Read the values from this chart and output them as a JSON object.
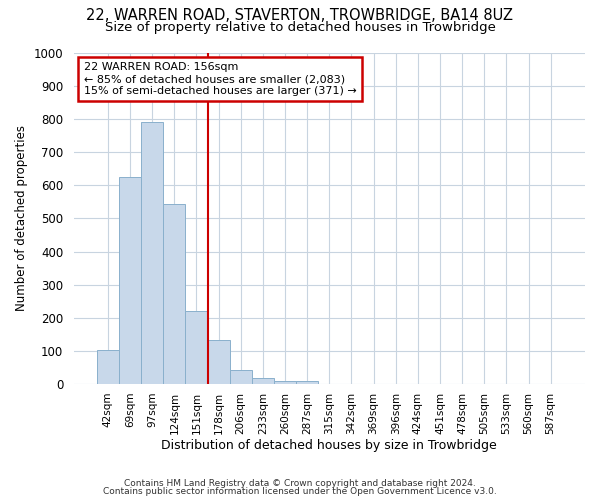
{
  "title": "22, WARREN ROAD, STAVERTON, TROWBRIDGE, BA14 8UZ",
  "subtitle": "Size of property relative to detached houses in Trowbridge",
  "xlabel": "Distribution of detached houses by size in Trowbridge",
  "ylabel": "Number of detached properties",
  "bar_color": "#c8d8ea",
  "bar_edge_color": "#8ab0cc",
  "categories": [
    "42sqm",
    "69sqm",
    "97sqm",
    "124sqm",
    "151sqm",
    "178sqm",
    "206sqm",
    "233sqm",
    "260sqm",
    "287sqm",
    "315sqm",
    "342sqm",
    "369sqm",
    "396sqm",
    "424sqm",
    "451sqm",
    "478sqm",
    "505sqm",
    "533sqm",
    "560sqm",
    "587sqm"
  ],
  "values": [
    103,
    625,
    790,
    543,
    220,
    133,
    43,
    18,
    10,
    10,
    0,
    0,
    0,
    0,
    0,
    0,
    0,
    0,
    0,
    0,
    0
  ],
  "red_line_x": 4.5,
  "annotation_line1": "22 WARREN ROAD: 156sqm",
  "annotation_line2": "← 85% of detached houses are smaller (2,083)",
  "annotation_line3": "15% of semi-detached houses are larger (371) →",
  "annotation_box_color": "#ffffff",
  "annotation_box_edge": "#cc0000",
  "red_line_color": "#cc0000",
  "ylim": [
    0,
    1000
  ],
  "yticks": [
    0,
    100,
    200,
    300,
    400,
    500,
    600,
    700,
    800,
    900,
    1000
  ],
  "footer1": "Contains HM Land Registry data © Crown copyright and database right 2024.",
  "footer2": "Contains public sector information licensed under the Open Government Licence v3.0.",
  "background_color": "#ffffff",
  "plot_background": "#ffffff",
  "grid_color": "#c8d4e0",
  "title_fontsize": 10.5,
  "subtitle_fontsize": 9.5
}
